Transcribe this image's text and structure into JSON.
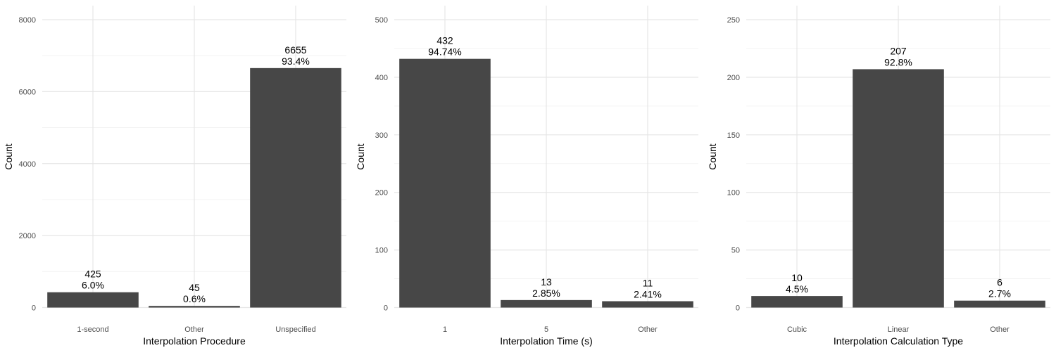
{
  "chart_data": [
    {
      "type": "bar",
      "categories": [
        "1-second",
        "Other",
        "Unspecified"
      ],
      "values": [
        425,
        45,
        6655
      ],
      "value_labels": [
        "425",
        "45",
        "6655"
      ],
      "percent_labels": [
        "6.0%",
        "0.6%",
        "93.4%"
      ],
      "xlabel": "Interpolation Procedure",
      "ylabel": "Count",
      "ylim": [
        0,
        8000
      ],
      "yticks": [
        0,
        2000,
        4000,
        6000,
        8000
      ],
      "ytick_labels": [
        "0",
        "2000",
        "4000",
        "6000",
        "8000"
      ],
      "grid": true,
      "bar_color": "#474747"
    },
    {
      "type": "bar",
      "categories": [
        "1",
        "5",
        "Other"
      ],
      "values": [
        432,
        13,
        11
      ],
      "value_labels": [
        "432",
        "13",
        "11"
      ],
      "percent_labels": [
        "94.74%",
        "2.85%",
        "2.41%"
      ],
      "xlabel": "Interpolation Time (s)",
      "ylabel": "Count",
      "ylim": [
        0,
        500
      ],
      "yticks": [
        0,
        100,
        200,
        300,
        400,
        500
      ],
      "ytick_labels": [
        "0",
        "100",
        "200",
        "300",
        "400",
        "500"
      ],
      "grid": true,
      "bar_color": "#474747"
    },
    {
      "type": "bar",
      "categories": [
        "Cubic",
        "Linear",
        "Other"
      ],
      "values": [
        10,
        207,
        6
      ],
      "value_labels": [
        "10",
        "207",
        "6"
      ],
      "percent_labels": [
        "4.5%",
        "92.8%",
        "2.7%"
      ],
      "xlabel": "Interpolation Calculation Type",
      "ylabel": "Count",
      "ylim": [
        0,
        250
      ],
      "yticks": [
        0,
        50,
        100,
        150,
        200,
        250
      ],
      "ytick_labels": [
        "0",
        "50",
        "100",
        "150",
        "200",
        "250"
      ],
      "grid": true,
      "bar_color": "#474747"
    }
  ]
}
